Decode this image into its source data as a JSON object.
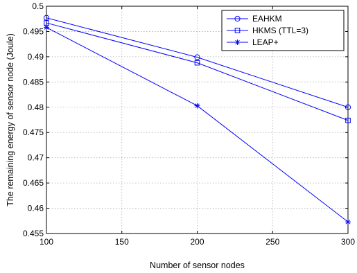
{
  "chart_data": {
    "type": "line",
    "title": "",
    "xlabel": "Number of sensor nodes",
    "ylabel": "The remaining energy of sensor node (Joule)",
    "xlim": [
      100,
      300
    ],
    "ylim": [
      0.455,
      0.5
    ],
    "x_ticks": [
      "100",
      "150",
      "200",
      "250",
      "300"
    ],
    "y_ticks": [
      "0.455",
      "0.46",
      "0.465",
      "0.47",
      "0.475",
      "0.48",
      "0.485",
      "0.49",
      "0.495",
      "0.5"
    ],
    "grid": true,
    "legend_position": "top-right",
    "x": [
      100,
      200,
      300
    ],
    "series": [
      {
        "name": "EAHKM",
        "marker": "circle",
        "color": "#0000ff",
        "values": [
          0.4977,
          0.4899,
          0.48
        ]
      },
      {
        "name": "HKMS (TTL=3)",
        "marker": "square",
        "color": "#0000ff",
        "values": [
          0.4967,
          0.4888,
          0.4774
        ]
      },
      {
        "name": "LEAP+",
        "marker": "asterisk",
        "color": "#0000ff",
        "values": [
          0.4958,
          0.4803,
          0.4573
        ]
      }
    ]
  }
}
